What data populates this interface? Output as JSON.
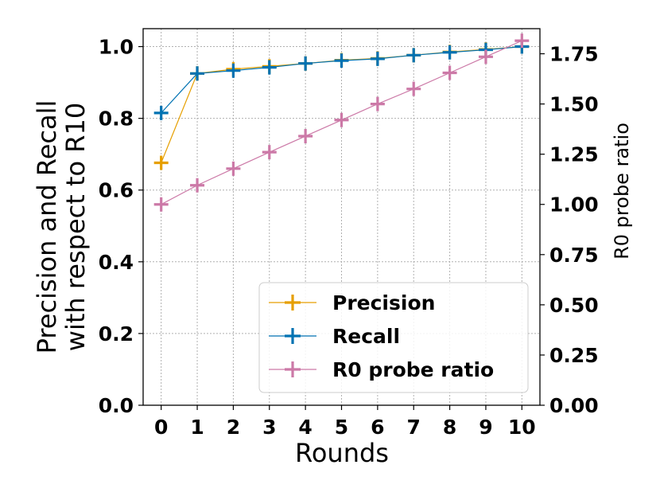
{
  "chart_data": {
    "type": "line",
    "xlabel": "Rounds",
    "ylabel_left_lines": [
      "Precision and Recall",
      "with respect to R10"
    ],
    "ylabel_right": "R0 probe ratio",
    "x": [
      0,
      1,
      2,
      3,
      4,
      5,
      6,
      7,
      8,
      9,
      10
    ],
    "x_tick_labels": [
      "0",
      "1",
      "2",
      "3",
      "4",
      "5",
      "6",
      "7",
      "8",
      "9",
      "10"
    ],
    "xlim": [
      -0.5,
      10.5
    ],
    "ylim_left": [
      0.0,
      1.05
    ],
    "ylim_right": [
      0.0,
      1.875
    ],
    "y_left_ticks": [
      "0.0",
      "0.2",
      "0.4",
      "0.6",
      "0.8",
      "1.0"
    ],
    "y_right_ticks": [
      "0.00",
      "0.25",
      "0.50",
      "0.75",
      "1.00",
      "1.25",
      "1.50",
      "1.75"
    ],
    "grid": true,
    "legend_position": "lower-right",
    "series": [
      {
        "name": "Precision",
        "axis": "left",
        "color": "#E69F00",
        "values": [
          0.676,
          0.925,
          0.937,
          0.945,
          0.953,
          0.962,
          0.967,
          0.976,
          0.985,
          0.992,
          1.0
        ]
      },
      {
        "name": "Recall",
        "axis": "left",
        "color": "#0072B2",
        "values": [
          0.815,
          0.925,
          0.933,
          0.942,
          0.953,
          0.961,
          0.966,
          0.976,
          0.984,
          0.991,
          1.0
        ]
      },
      {
        "name": "R0 probe ratio",
        "axis": "right",
        "color": "#CC79A7",
        "values": [
          1.0,
          1.095,
          1.178,
          1.26,
          1.34,
          1.42,
          1.5,
          1.575,
          1.655,
          1.735,
          1.815
        ]
      }
    ]
  }
}
